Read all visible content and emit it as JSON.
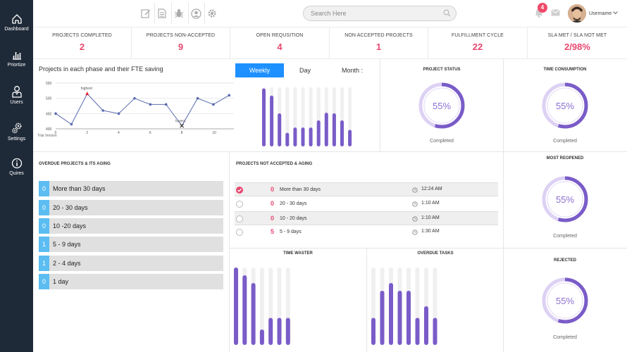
{
  "sidebar": {
    "items": [
      {
        "label": "Dashboard",
        "icon": "home-icon"
      },
      {
        "label": "Priortize",
        "icon": "bar-chart-icon"
      },
      {
        "label": "Users",
        "icon": "user-icon"
      },
      {
        "label": "Settings",
        "icon": "gears-icon"
      },
      {
        "label": "Quires",
        "icon": "info-icon"
      }
    ]
  },
  "toolbar": {
    "icons": [
      "edit-icon",
      "document-icon",
      "bug-icon",
      "profile-icon",
      "gear-icon"
    ]
  },
  "search": {
    "placeholder": "Search Here"
  },
  "header": {
    "notification_count": "4",
    "username": "Username"
  },
  "stats": [
    {
      "title": "PROJECTS COMPLETED",
      "value": "2"
    },
    {
      "title": "PROJECTS NON-ACCEPTED",
      "value": "9"
    },
    {
      "title": "OPEN REQUSITION",
      "value": "4"
    },
    {
      "title": "NON ACCEPTED PROJECTS",
      "value": "1"
    },
    {
      "title": "FULFILLMENT CYCLE",
      "value": "22"
    },
    {
      "title": "SLA MET / SLA NOT MET",
      "value": "2/98%"
    }
  ],
  "phase_chart": {
    "title": "Projects in each phase and their FTE saving",
    "x_footer": "Trial Version",
    "highest_label": "highest",
    "lowest_label": "lowest"
  },
  "tabs": [
    {
      "label": "Weekly",
      "active": true
    },
    {
      "label": "Day",
      "active": false
    },
    {
      "label": "Month :",
      "active": false
    }
  ],
  "donuts": {
    "project_status": {
      "title": "PROJECT STATUS",
      "value": "55%",
      "label": "Completed",
      "fraction": 0.55
    },
    "time_consumption": {
      "title": "TIME CONSUMPTION",
      "value": "55%",
      "label": "Completed",
      "fraction": 0.55
    },
    "most_reopened": {
      "title": "MOST REOPENED",
      "value": "55%",
      "label": "Completed",
      "fraction": 0.55
    },
    "rejected": {
      "title": "REJECTED",
      "value": "55%",
      "label": "Completed",
      "fraction": 0.55
    }
  },
  "overdue": {
    "title": "OVERDUE PROJECTS & ITS AGING",
    "rows": [
      {
        "count": "0",
        "label": "More than 30 days"
      },
      {
        "count": "0",
        "label": "20 - 30 days"
      },
      {
        "count": "0",
        "label": "10 -20 days"
      },
      {
        "count": "1",
        "label": "5 - 9 days"
      },
      {
        "count": "1",
        "label": "2 - 4 days"
      },
      {
        "count": "0",
        "label": "1 day"
      }
    ]
  },
  "not_accepted": {
    "title": "PROJECTS NOT ACCEPTED & AGING",
    "rows": [
      {
        "count": "0",
        "label": "More than 30 days",
        "time": "12:24 AM",
        "checked": true
      },
      {
        "count": "0",
        "label": "20 - 30 days",
        "time": "1:10 AM",
        "checked": false
      },
      {
        "count": "0",
        "label": "10 - 20 days",
        "time": "1:10 AM",
        "checked": false
      },
      {
        "count": "5",
        "label": "5 - 9 days",
        "time": "1:30 AM",
        "checked": false
      }
    ]
  },
  "bottom_titles": {
    "time_waster": "TIME WASTER",
    "overdue_tasks": "OVERDUE TASKS"
  },
  "colors": {
    "accent": "#e84870",
    "sidebar": "#1f2a38",
    "bar": "#7a5cc8",
    "track": "#f0f0f0",
    "tab_active": "#1e90ff",
    "aging_count": "#5bbdf1"
  },
  "chart_data": [
    {
      "type": "line",
      "title": "Projects in each phase and their FTE saving",
      "x": [
        0,
        1,
        2,
        3,
        4,
        5,
        6,
        7,
        8,
        9,
        10,
        11
      ],
      "y": [
        450,
        415,
        515,
        460,
        450,
        500,
        480,
        480,
        410,
        500,
        480,
        510
      ],
      "x_ticks": [
        0,
        2,
        4,
        6,
        8,
        10
      ],
      "y_ticks": [
        400,
        450,
        500,
        550
      ],
      "ylim": [
        400,
        550
      ],
      "grid": true,
      "annotations": [
        {
          "text": "highest",
          "x": 2
        },
        {
          "text": "lowest",
          "x": 8
        }
      ]
    },
    {
      "type": "bar",
      "title": "",
      "values": [
        0.98,
        0.86,
        0.56,
        0.23,
        0.32,
        0.32,
        0.32,
        0.44,
        0.57,
        0.56,
        0.44,
        0.28
      ],
      "ylim": [
        0,
        1
      ]
    },
    {
      "type": "bar",
      "title": "TIME WASTER",
      "values": [
        1.0,
        0.9,
        0.8,
        0.2,
        0.35,
        0.35,
        0.35
      ],
      "ylim": [
        0,
        1
      ]
    },
    {
      "type": "bar",
      "title": "OVERDUE TASKS",
      "values": [
        0.35,
        0.7,
        0.8,
        0.7,
        0.7,
        0.35,
        0.5,
        0.35
      ],
      "ylim": [
        0,
        1
      ]
    }
  ]
}
